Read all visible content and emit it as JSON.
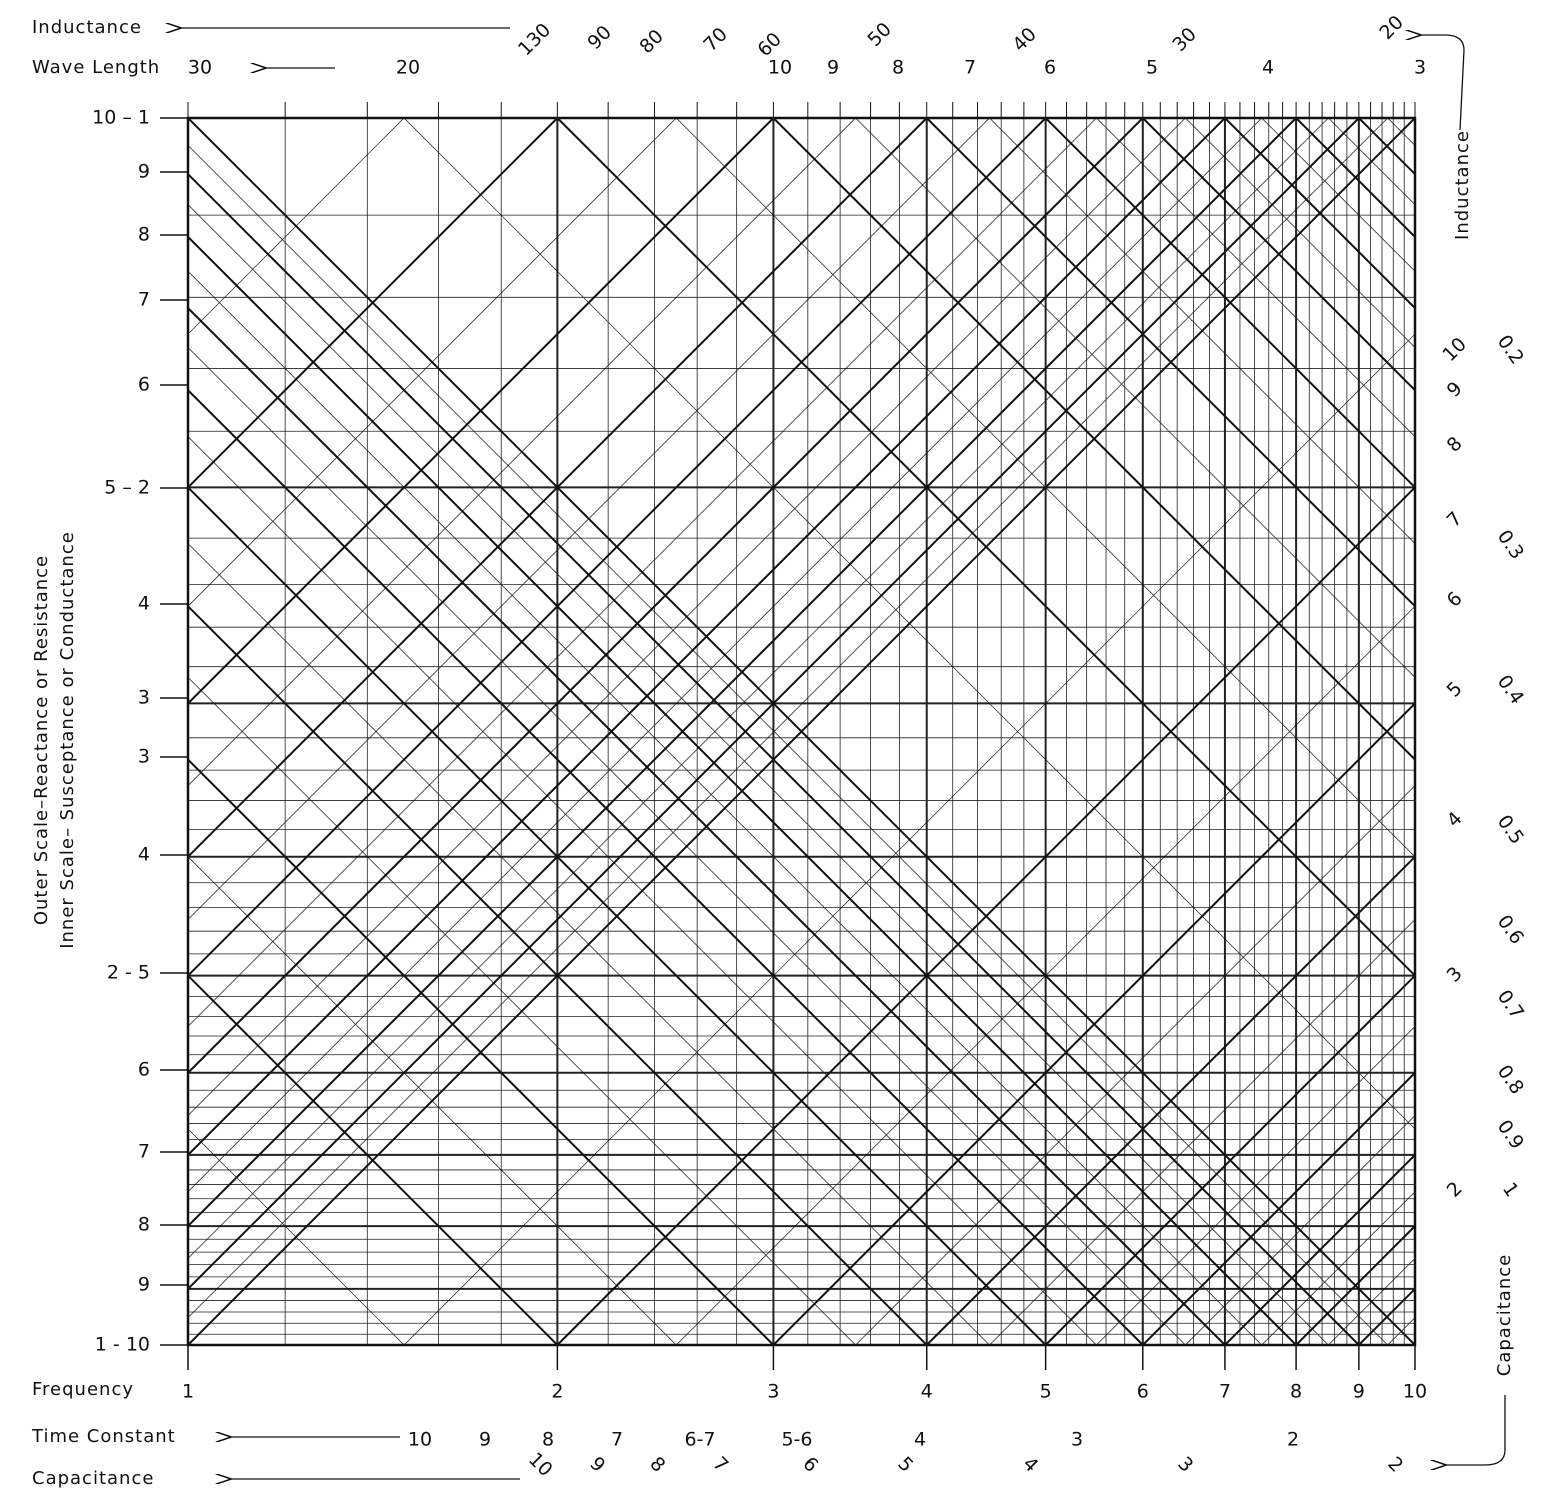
{
  "top": {
    "inductance": "Inductance",
    "wave_length": "Wave Length",
    "wave_labels": [
      "30",
      "20",
      "10",
      "9",
      "8",
      "7",
      "6",
      "5",
      "4",
      "3"
    ],
    "inductance_labels": [
      "130",
      "90",
      "80",
      "70",
      "60",
      "50",
      "40",
      "30",
      "20"
    ]
  },
  "left": {
    "outer_title": "Outer Scale–Reactance or Resistance",
    "inner_title": "Inner Scale– Susceptance or Conductance",
    "ticks": [
      "10 – 1",
      "9",
      "8",
      "7",
      "6",
      "5 – 2",
      "4",
      "3",
      "3",
      "4",
      "2 - 5",
      "6",
      "7",
      "8",
      "9",
      "1 - 10"
    ]
  },
  "right": {
    "inductance": "Inductance",
    "capacitance": "Capacitance",
    "inductance_labels": [
      "0.2",
      "0.3",
      "0.4",
      "0.5",
      "0.6",
      "0.7",
      "0.8",
      "0.9",
      "1"
    ],
    "capacitance_labels": [
      "10",
      "9",
      "8",
      "7",
      "6",
      "5",
      "4",
      "3",
      "2"
    ]
  },
  "bottom": {
    "frequency": "Frequency",
    "time_constant": "Time Constant",
    "capacitance": "Capacitance",
    "frequency_labels": [
      "1",
      "2",
      "3",
      "4",
      "5",
      "6",
      "7",
      "8",
      "9",
      "10"
    ],
    "time_constant_labels": [
      "10",
      "9",
      "8",
      "7",
      "6-7",
      "5-6",
      "4",
      "3",
      "2"
    ],
    "capacitance_labels": [
      "10",
      "9",
      "8",
      "7",
      "6",
      "5",
      "4",
      "3",
      "2"
    ]
  }
}
